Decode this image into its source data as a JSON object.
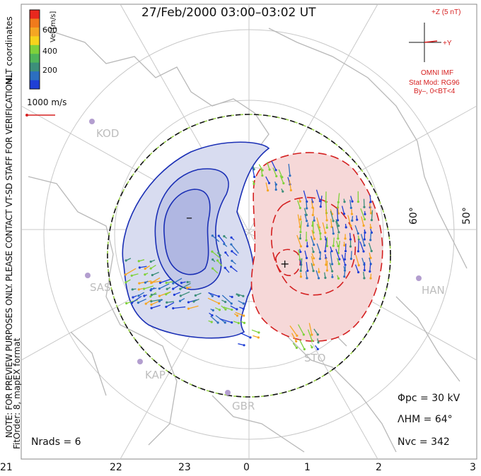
{
  "title": "27/Feb/2000 03:00–03:02 UT",
  "colorbar": {
    "label": "Vel [m/s]",
    "ticks": [
      "600",
      "400",
      "200"
    ],
    "colors": [
      "#e8281e",
      "#f07a1c",
      "#f5a623",
      "#f7d31c",
      "#7fd13b",
      "#4fb55a",
      "#3c8f7a",
      "#2c6fc0",
      "#1f3fd6"
    ]
  },
  "coord_note": "MLT coordinates",
  "speed_scale": "1000 m/s",
  "imf": {
    "plus_z": "+Z (5 nT)",
    "plus_y": "+Y",
    "source": "OMNI IMF",
    "model": "Stat Mod: RG96",
    "condition": "By–, 0<BT<4"
  },
  "verification_note": "NOTE: FOR PREVIEW PURPOSES ONLY. PLEASE CONTACT VT-SD STAFF FOR VERIFICATION.",
  "fit_note": "FitOrder: 8, mapEX format",
  "latitude_labels": [
    "60°",
    "50°"
  ],
  "stations": [
    "KOD",
    "SAS",
    "KAP",
    "GBR",
    "STO",
    "HAN"
  ],
  "potential": {
    "phi_pc": "Φpc = 30 kV",
    "lambda_hm": "ΛHM = 64°",
    "n_vc": "Nvc = 342",
    "n_rads": "Nrads = 6"
  },
  "cells": {
    "negative_sign": "–",
    "positive_sign": "+"
  },
  "mlt_ticks": [
    "21",
    "22",
    "23",
    "0",
    "1",
    "2",
    "3"
  ],
  "colors": {
    "neg_fill": "#d8dcf0",
    "neg_line": "#1a2fb5",
    "pos_fill": "#f6d8d8",
    "pos_line": "#d42020",
    "map": "#bdbdbd"
  }
}
